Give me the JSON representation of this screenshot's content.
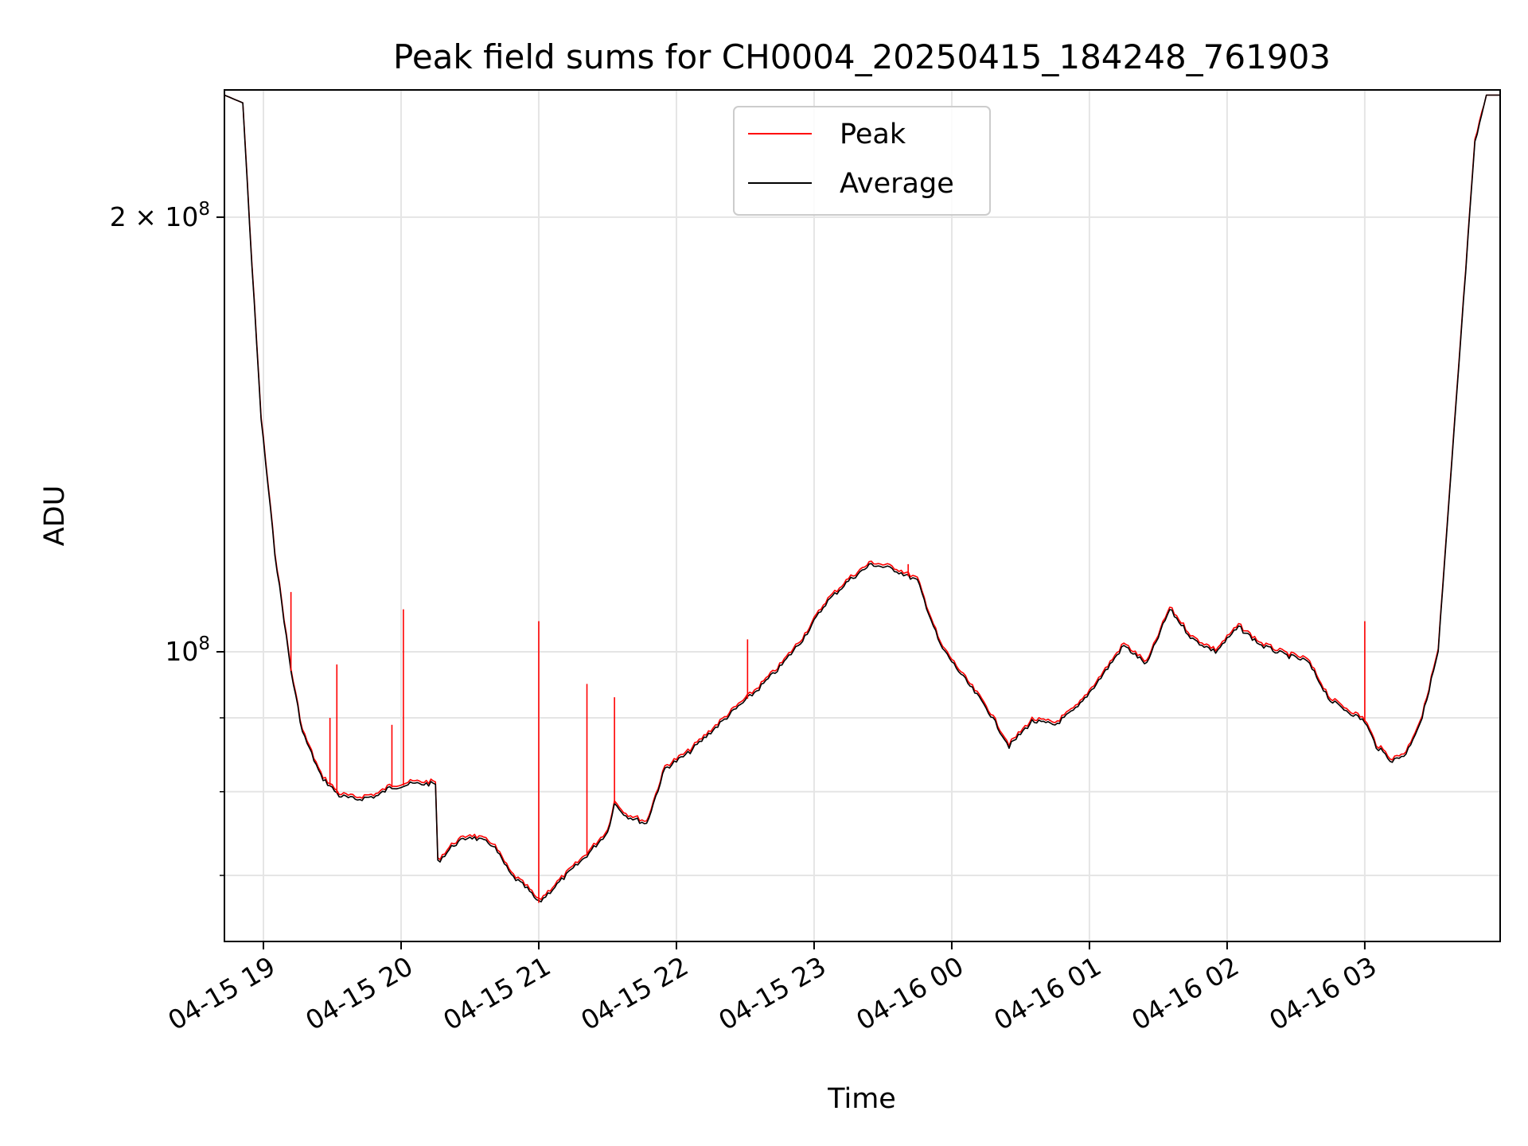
{
  "chart_data": {
    "type": "line",
    "title": "Peak field sums for CH0004_20250415_184248_761903",
    "xlabel": "Time",
    "ylabel": "ADU",
    "y_scale": "log",
    "ylim": [
      63000000,
      245000000
    ],
    "xlim": [
      "2025-04-15T18:43",
      "2025-04-16T03:59"
    ],
    "grid": true,
    "legend_position": "top-center",
    "x_ticks": [
      {
        "t": "2025-04-15T19:00",
        "label": "04-15 19"
      },
      {
        "t": "2025-04-15T20:00",
        "label": "04-15 20"
      },
      {
        "t": "2025-04-15T21:00",
        "label": "04-15 21"
      },
      {
        "t": "2025-04-15T22:00",
        "label": "04-15 22"
      },
      {
        "t": "2025-04-15T23:00",
        "label": "04-15 23"
      },
      {
        "t": "2025-04-16T00:00",
        "label": "04-16 00"
      },
      {
        "t": "2025-04-16T01:00",
        "label": "04-16 01"
      },
      {
        "t": "2025-04-16T02:00",
        "label": "04-16 02"
      },
      {
        "t": "2025-04-16T03:00",
        "label": "04-16 03"
      }
    ],
    "y_major_ticks": [
      {
        "value": 100000000,
        "base": "10",
        "exp": "8",
        "coef": ""
      },
      {
        "value": 200000000,
        "base": "10",
        "exp": "8",
        "coef": "2 × "
      }
    ],
    "y_minor_ticks": [
      70000000,
      80000000,
      90000000
    ],
    "series": [
      {
        "name": "Average",
        "color": "#000000",
        "points": [
          [
            "2025-04-15T18:43",
            243000000
          ],
          [
            "2025-04-15T18:51",
            240000000
          ],
          [
            "2025-04-15T18:55",
            185000000
          ],
          [
            "2025-04-15T18:59",
            145000000
          ],
          [
            "2025-04-15T19:05",
            117000000
          ],
          [
            "2025-04-15T19:12",
            97000000
          ],
          [
            "2025-04-15T19:17",
            88000000
          ],
          [
            "2025-04-15T19:25",
            82000000
          ],
          [
            "2025-04-15T19:33",
            79500000
          ],
          [
            "2025-04-15T19:40",
            79000000
          ],
          [
            "2025-04-15T19:50",
            79500000
          ],
          [
            "2025-04-15T19:55",
            80500000
          ],
          [
            "2025-04-15T20:05",
            81000000
          ],
          [
            "2025-04-15T20:15",
            81000000
          ],
          [
            "2025-04-15T20:16",
            71500000
          ],
          [
            "2025-04-15T20:23",
            73500000
          ],
          [
            "2025-04-15T20:30",
            74500000
          ],
          [
            "2025-04-15T20:40",
            73500000
          ],
          [
            "2025-04-15T20:48",
            70000000
          ],
          [
            "2025-04-15T20:55",
            68500000
          ],
          [
            "2025-04-15T21:00",
            67000000
          ],
          [
            "2025-04-15T21:10",
            69500000
          ],
          [
            "2025-04-15T21:20",
            72000000
          ],
          [
            "2025-04-15T21:30",
            75000000
          ],
          [
            "2025-04-15T21:33",
            78500000
          ],
          [
            "2025-04-15T21:38",
            77000000
          ],
          [
            "2025-04-15T21:47",
            76000000
          ],
          [
            "2025-04-15T21:55",
            83000000
          ],
          [
            "2025-04-15T22:05",
            85000000
          ],
          [
            "2025-04-15T22:15",
            88000000
          ],
          [
            "2025-04-15T22:25",
            91000000
          ],
          [
            "2025-04-15T22:35",
            94000000
          ],
          [
            "2025-04-15T22:45",
            97500000
          ],
          [
            "2025-04-15T22:55",
            102000000
          ],
          [
            "2025-04-15T23:05",
            108000000
          ],
          [
            "2025-04-15T23:15",
            112000000
          ],
          [
            "2025-04-15T23:25",
            115000000
          ],
          [
            "2025-04-15T23:35",
            114000000
          ],
          [
            "2025-04-15T23:45",
            112000000
          ],
          [
            "2025-04-15T23:55",
            101000000
          ],
          [
            "2025-04-16T00:05",
            96000000
          ],
          [
            "2025-04-16T00:15",
            91500000
          ],
          [
            "2025-04-16T00:25",
            86000000
          ],
          [
            "2025-04-16T00:35",
            89500000
          ],
          [
            "2025-04-16T00:45",
            89000000
          ],
          [
            "2025-04-16T00:55",
            91500000
          ],
          [
            "2025-04-16T01:05",
            96000000
          ],
          [
            "2025-04-16T01:15",
            101000000
          ],
          [
            "2025-04-16T01:25",
            98000000
          ],
          [
            "2025-04-16T01:35",
            107000000
          ],
          [
            "2025-04-16T01:45",
            102000000
          ],
          [
            "2025-04-16T01:55",
            100000000
          ],
          [
            "2025-04-16T02:05",
            104000000
          ],
          [
            "2025-04-16T02:15",
            101000000
          ],
          [
            "2025-04-16T02:25",
            99500000
          ],
          [
            "2025-04-16T02:35",
            98500000
          ],
          [
            "2025-04-16T02:45",
            92500000
          ],
          [
            "2025-04-16T02:55",
            90500000
          ],
          [
            "2025-04-16T03:00",
            89500000
          ],
          [
            "2025-04-16T03:05",
            86000000
          ],
          [
            "2025-04-16T03:12",
            84000000
          ],
          [
            "2025-04-16T03:18",
            85000000
          ],
          [
            "2025-04-16T03:25",
            90000000
          ],
          [
            "2025-04-16T03:32",
            100000000
          ],
          [
            "2025-04-16T03:40",
            150000000
          ],
          [
            "2025-04-16T03:48",
            225000000
          ],
          [
            "2025-04-16T03:53",
            243000000
          ],
          [
            "2025-04-16T03:59",
            243000000
          ]
        ]
      },
      {
        "name": "Peak",
        "color": "#ff0000",
        "spikes": [
          [
            "2025-04-15T19:12",
            110000000
          ],
          [
            "2025-04-15T19:29",
            90000000
          ],
          [
            "2025-04-15T19:32",
            98000000
          ],
          [
            "2025-04-15T19:56",
            89000000
          ],
          [
            "2025-04-15T20:01",
            107000000
          ],
          [
            "2025-04-15T21:00",
            105000000
          ],
          [
            "2025-04-15T21:21",
            95000000
          ],
          [
            "2025-04-15T21:33",
            93000000
          ],
          [
            "2025-04-15T22:31",
            102000000
          ],
          [
            "2025-04-15T23:41",
            115000000
          ],
          [
            "2025-04-16T03:00",
            105000000
          ]
        ]
      }
    ]
  },
  "legend": [
    {
      "label": "Peak",
      "color": "#ff0000"
    },
    {
      "label": "Average",
      "color": "#000000"
    }
  ]
}
